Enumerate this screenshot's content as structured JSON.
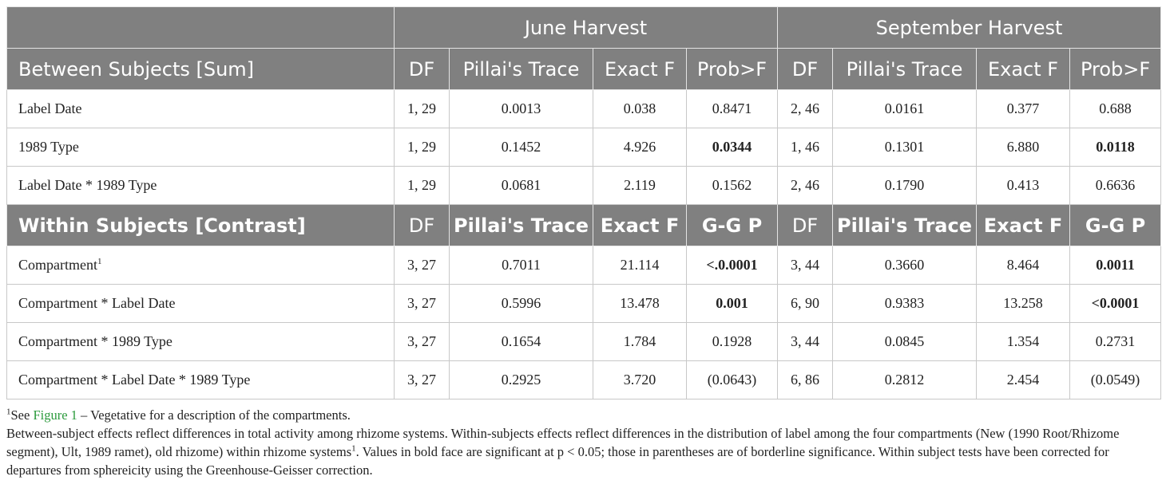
{
  "header": {
    "june": "June Harvest",
    "september": "September Harvest"
  },
  "between": {
    "title": "Between Subjects [Sum]",
    "cols": [
      "DF",
      "Pillai's Trace",
      "Exact F",
      "Prob>F",
      "DF",
      "Pillai's Trace",
      "Exact F",
      "Prob>F"
    ],
    "rows": [
      {
        "label": "Label Date",
        "sup": "",
        "cells": [
          "1, 29",
          "0.0013",
          "0.038",
          "0.8471",
          "2, 46",
          "0.0161",
          "0.377",
          "0.688"
        ],
        "bold": [
          false,
          false,
          false,
          false,
          false,
          false,
          false,
          false
        ]
      },
      {
        "label": "1989 Type",
        "sup": "",
        "cells": [
          "1, 29",
          "0.1452",
          "4.926",
          "0.0344",
          "1, 46",
          "0.1301",
          "6.880",
          "0.0118"
        ],
        "bold": [
          false,
          false,
          false,
          true,
          false,
          false,
          false,
          true
        ]
      },
      {
        "label": "Label Date * 1989 Type",
        "sup": "",
        "cells": [
          "1, 29",
          "0.0681",
          "2.119",
          "0.1562",
          "2, 46",
          "0.1790",
          "0.413",
          "0.6636"
        ],
        "bold": [
          false,
          false,
          false,
          false,
          false,
          false,
          false,
          false
        ]
      }
    ]
  },
  "within": {
    "title": "Within Subjects [Contrast]",
    "cols": [
      "DF",
      "Pillai's Trace",
      "Exact F",
      "G-G P",
      "DF",
      "Pillai's Trace",
      "Exact F",
      "G-G P"
    ],
    "rows": [
      {
        "label": "Compartment",
        "sup": "1",
        "cells": [
          "3, 27",
          "0.7011",
          "21.114",
          "<.0.0001",
          "3, 44",
          "0.3660",
          "8.464",
          "0.0011"
        ],
        "bold": [
          false,
          false,
          false,
          true,
          false,
          false,
          false,
          true
        ]
      },
      {
        "label": "Compartment * Label Date",
        "sup": "",
        "cells": [
          "3, 27",
          "0.5996",
          "13.478",
          "0.001",
          "6, 90",
          "0.9383",
          "13.258",
          "<0.0001"
        ],
        "bold": [
          false,
          false,
          false,
          true,
          false,
          false,
          false,
          true
        ]
      },
      {
        "label": "Compartment * 1989 Type",
        "sup": "",
        "cells": [
          "3, 27",
          "0.1654",
          "1.784",
          "0.1928",
          "3, 44",
          "0.0845",
          "1.354",
          "0.2731"
        ],
        "bold": [
          false,
          false,
          false,
          false,
          false,
          false,
          false,
          false
        ]
      },
      {
        "label": "Compartment * Label Date * 1989 Type",
        "sup": "",
        "cells": [
          "3, 27",
          "0.2925",
          "3.720",
          "(0.0643)",
          "6, 86",
          "0.2812",
          "2.454",
          "(0.0549)"
        ],
        "bold": [
          false,
          false,
          false,
          false,
          false,
          false,
          false,
          false
        ]
      }
    ]
  },
  "footnote": {
    "sup": "1",
    "pre": "See ",
    "link": "Figure 1",
    "post": " – Vegetative for a description of the compartments."
  },
  "note": {
    "part1": "Between-subject effects reflect differences in total activity among rhizome systems. Within-subjects effects reflect differences in the distribution of label among the four compartments (New (1990 Root/Rhizome segment), Ult, 1989 ramet), old rhizome) within rhizome systems",
    "sup": "1",
    "part2": ". Values in bold face are significant at p < 0.05; those in parentheses are of borderline significance. Within subject tests have been corrected for departures from sphereicity using the Greenhouse-Geisser correction."
  }
}
